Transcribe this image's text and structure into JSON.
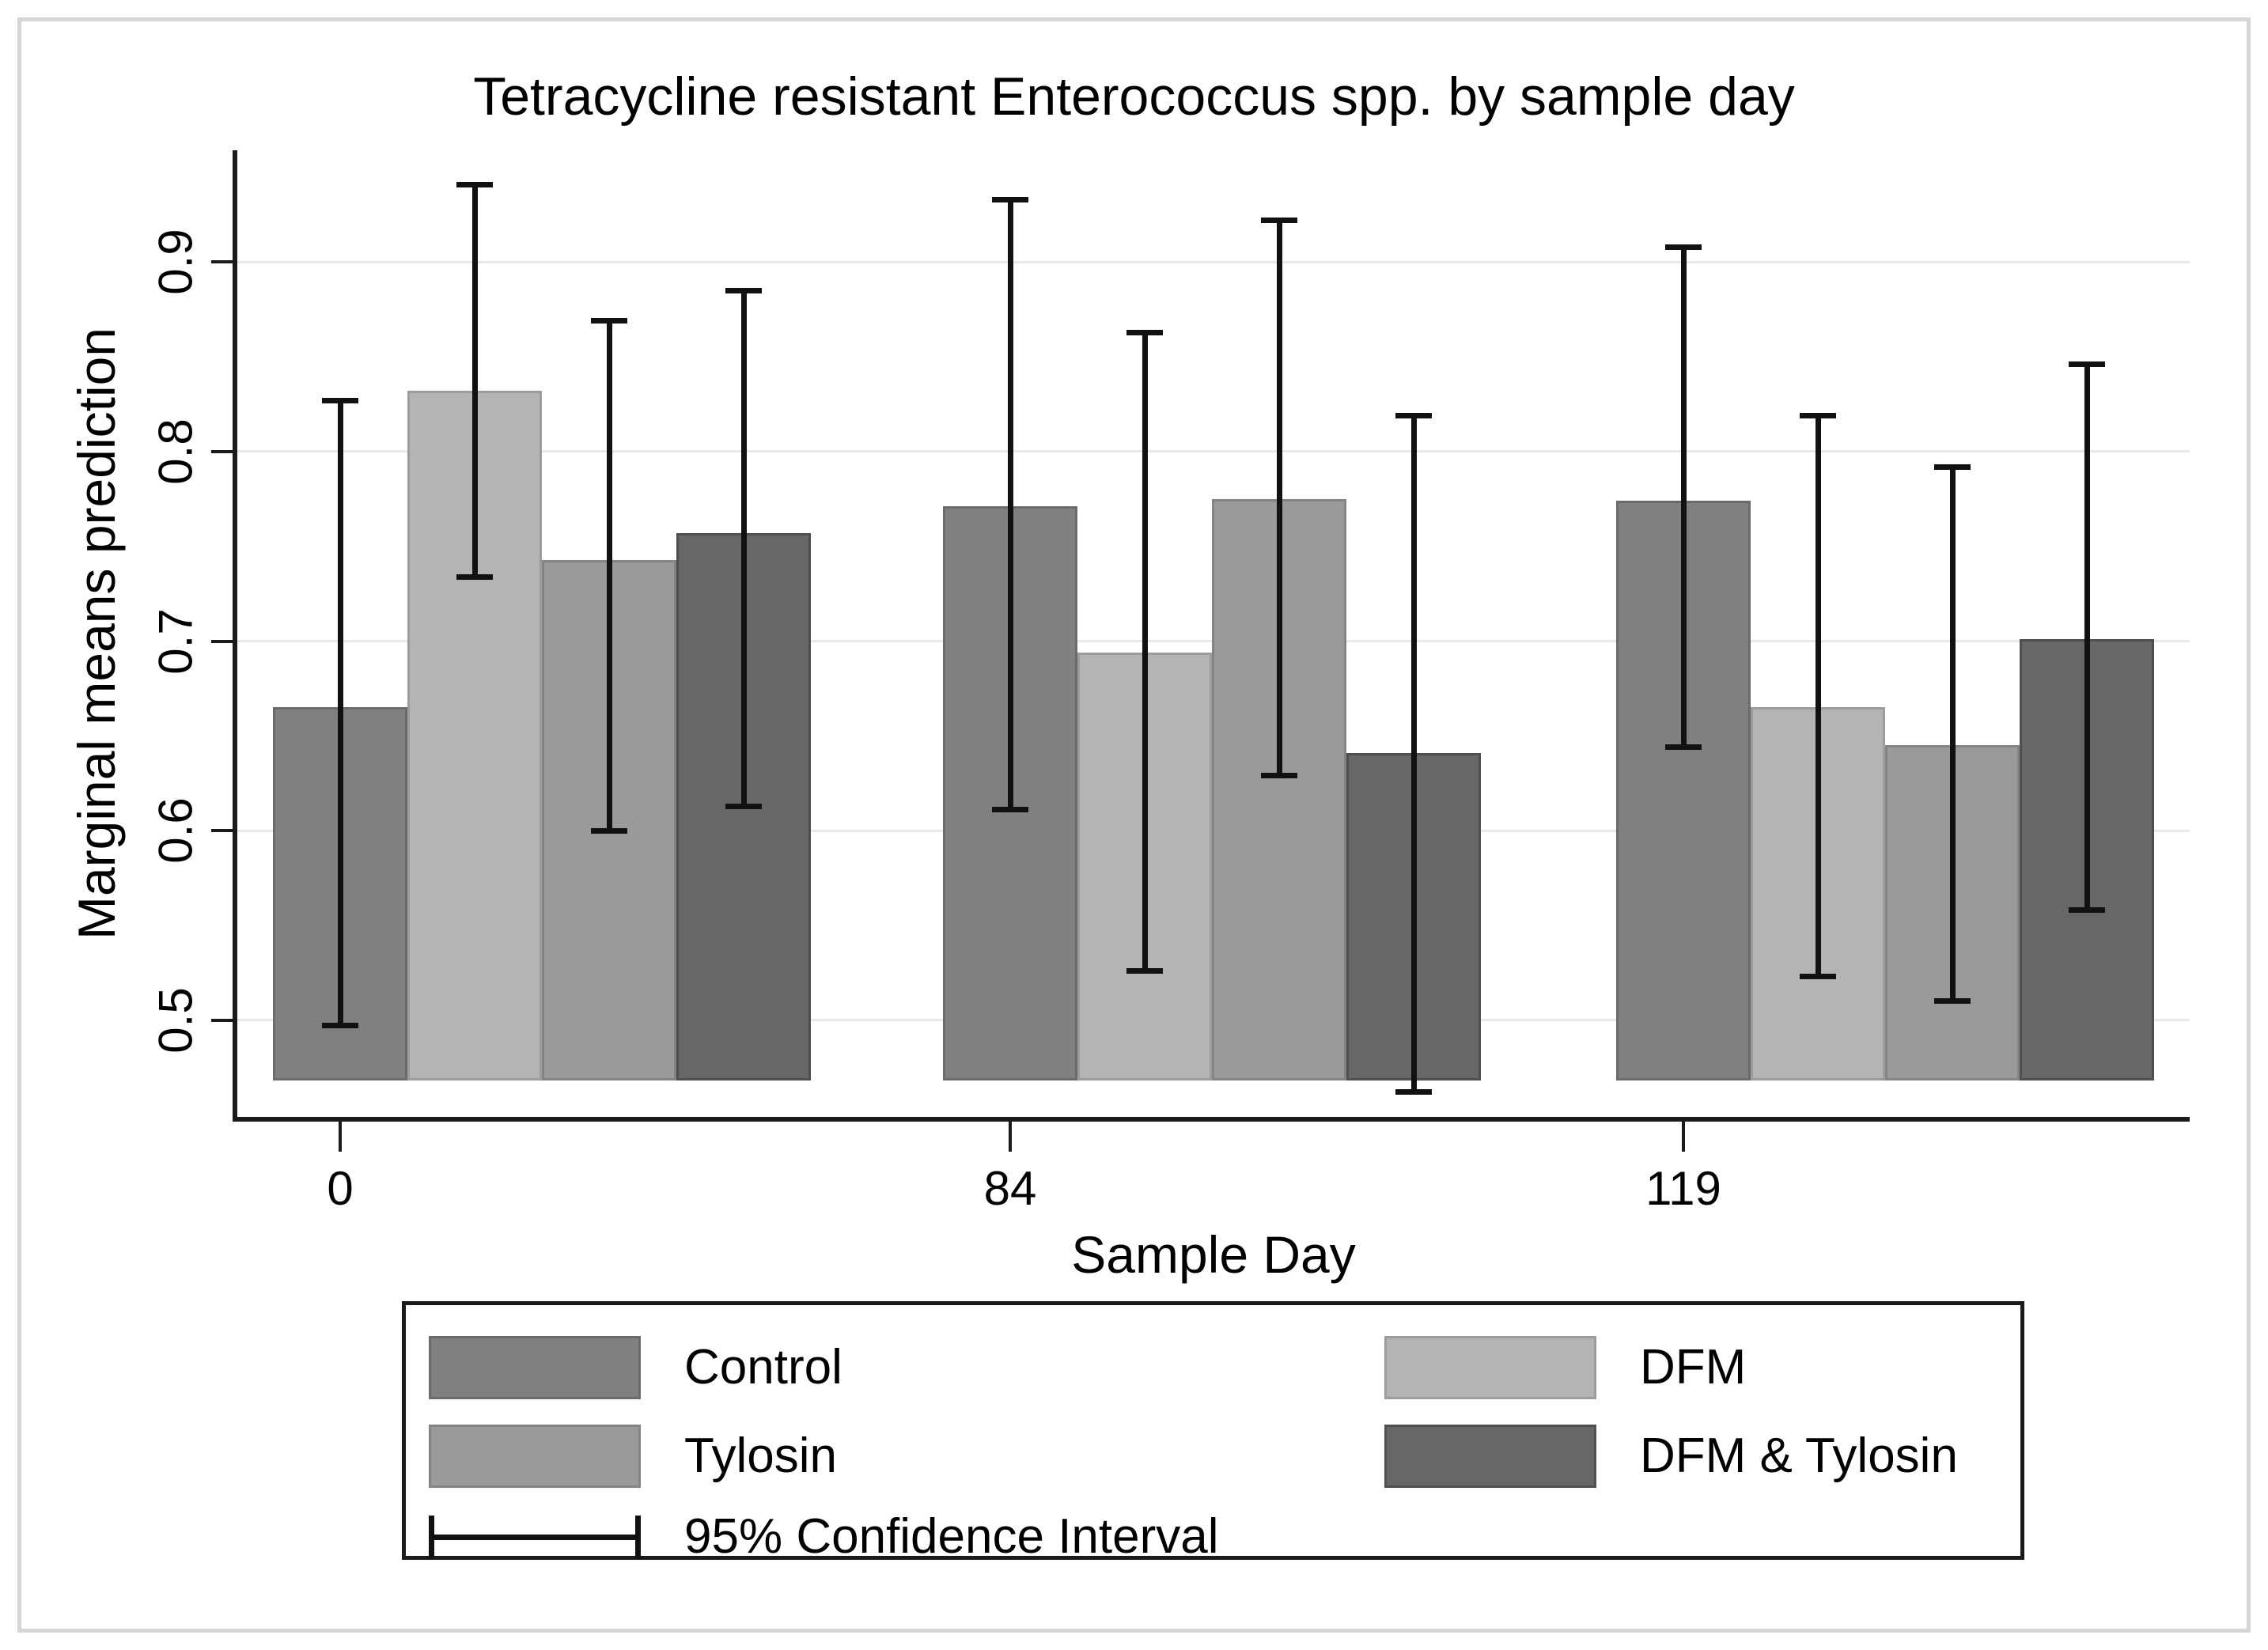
{
  "title": "Tetracycline resistant Enterococcus spp. by sample day",
  "chart_data": {
    "type": "bar",
    "title": "Tetracycline resistant Enterococcus spp. by sample day",
    "xlabel": "Sample Day",
    "ylabel": "Marginal means prediction",
    "categories": [
      "0",
      "84",
      "119"
    ],
    "series": [
      {
        "name": "Control",
        "color": "#808080",
        "border_color": "#6b6b6b",
        "values": [
          0.665,
          0.771,
          0.774
        ],
        "ci_low": [
          0.497,
          0.611,
          0.644
        ],
        "ci_high": [
          0.827,
          0.933,
          0.908
        ]
      },
      {
        "name": "DFM",
        "color": "#b4b4b4",
        "border_color": "#9c9c9c",
        "values": [
          0.832,
          0.694,
          0.665
        ],
        "ci_low": [
          0.734,
          0.526,
          0.523
        ],
        "ci_high": [
          0.941,
          0.863,
          0.819
        ]
      },
      {
        "name": "Tylosin",
        "color": "#9a9a9a",
        "border_color": "#848484",
        "values": [
          0.743,
          0.775,
          0.645
        ],
        "ci_low": [
          0.6,
          0.629,
          0.51
        ],
        "ci_high": [
          0.869,
          0.922,
          0.792
        ]
      },
      {
        "name": "DFM & Tylosin",
        "color": "#676767",
        "border_color": "#4f4f4f",
        "values": [
          0.757,
          0.641,
          0.701
        ],
        "ci_low": [
          0.613,
          0.462,
          0.558
        ],
        "ci_high": [
          0.885,
          0.819,
          0.846
        ]
      }
    ],
    "yticks": [
      0.5,
      0.6,
      0.7,
      0.8,
      0.9
    ],
    "ytick_labels": [
      "0.5",
      "0.6",
      "0.7",
      "0.8",
      "0.9"
    ],
    "ylim": [
      0.449,
      0.959
    ],
    "bar_base": 0.468,
    "grid": true,
    "error_bars": true,
    "legend": {
      "position": "bottom",
      "entries": [
        "Control",
        "DFM",
        "Tylosin",
        "DFM & Tylosin"
      ],
      "ci_label": "95% Confidence Interval"
    }
  },
  "colors": {
    "axis": "#1a1a1a",
    "gridline": "#e8e8e8",
    "error_bar": "#111111",
    "frame_border": "#d6d6d6",
    "background": "#ffffff"
  }
}
